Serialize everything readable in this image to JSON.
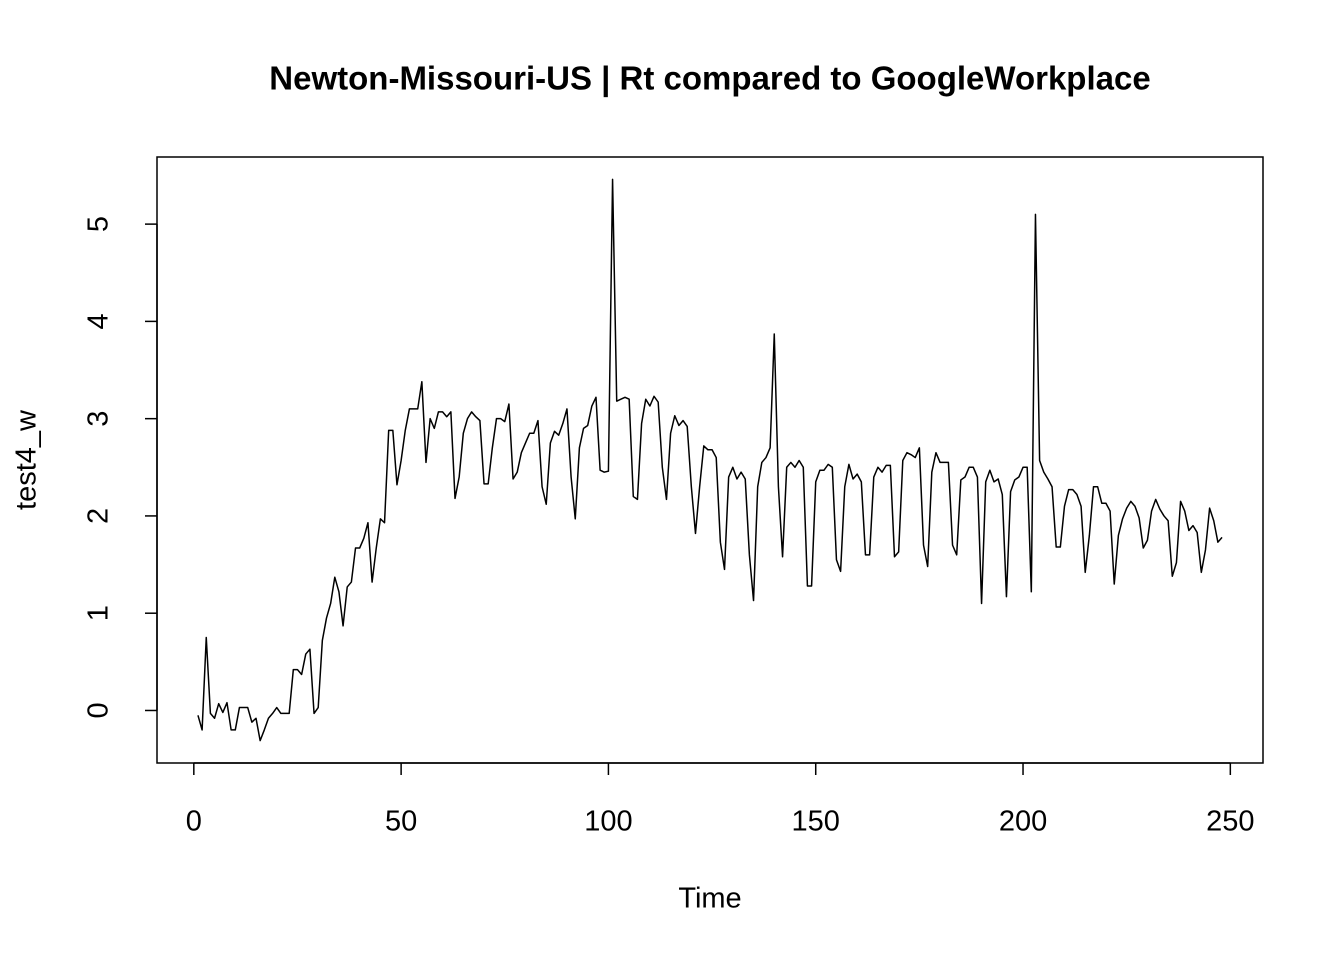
{
  "chart_data": {
    "type": "line",
    "title": "Newton-Missouri-US | Rt compared to GoogleWorkplace",
    "x_label": "Time",
    "y_label": "test4_w",
    "x": [
      1,
      2,
      3,
      4,
      5,
      6,
      7,
      8,
      9,
      10,
      11,
      12,
      13,
      14,
      15,
      16,
      17,
      18,
      19,
      20,
      21,
      22,
      23,
      24,
      25,
      26,
      27,
      28,
      29,
      30,
      31,
      32,
      33,
      34,
      35,
      36,
      37,
      38,
      39,
      40,
      41,
      42,
      43,
      44,
      45,
      46,
      47,
      48,
      49,
      50,
      51,
      52,
      53,
      54,
      55,
      56,
      57,
      58,
      59,
      60,
      61,
      62,
      63,
      64,
      65,
      66,
      67,
      68,
      69,
      70,
      71,
      72,
      73,
      74,
      75,
      76,
      77,
      78,
      79,
      80,
      81,
      82,
      83,
      84,
      85,
      86,
      87,
      88,
      89,
      90,
      91,
      92,
      93,
      94,
      95,
      96,
      97,
      98,
      99,
      100,
      101,
      102,
      103,
      104,
      105,
      106,
      107,
      108,
      109,
      110,
      111,
      112,
      113,
      114,
      115,
      116,
      117,
      118,
      119,
      120,
      121,
      122,
      123,
      124,
      125,
      126,
      127,
      128,
      129,
      130,
      131,
      132,
      133,
      134,
      135,
      136,
      137,
      138,
      139,
      140,
      141,
      142,
      143,
      144,
      145,
      146,
      147,
      148,
      149,
      150,
      151,
      152,
      153,
      154,
      155,
      156,
      157,
      158,
      159,
      160,
      161,
      162,
      163,
      164,
      165,
      166,
      167,
      168,
      169,
      170,
      171,
      172,
      173,
      174,
      175,
      176,
      177,
      178,
      179,
      180,
      181,
      182,
      183,
      184,
      185,
      186,
      187,
      188,
      189,
      190,
      191,
      192,
      193,
      194,
      195,
      196,
      197,
      198,
      199,
      200,
      201,
      202,
      203,
      204,
      205,
      206,
      207,
      208,
      209,
      210,
      211,
      212,
      213,
      214,
      215,
      216,
      217,
      218,
      219,
      220,
      221,
      222,
      223,
      224,
      225,
      226,
      227,
      228,
      229,
      230,
      231,
      232,
      233,
      234,
      235,
      236,
      237,
      238,
      239,
      240,
      241,
      242,
      243,
      244,
      245,
      246,
      247,
      248
    ],
    "series": [
      {
        "color": "#000000",
        "values": [
          -0.05,
          -0.2,
          0.75,
          -0.03,
          -0.08,
          0.07,
          -0.02,
          0.08,
          -0.2,
          -0.2,
          0.03,
          0.03,
          0.03,
          -0.12,
          -0.08,
          -0.31,
          -0.2,
          -0.08,
          -0.03,
          0.03,
          -0.03,
          -0.03,
          -0.03,
          0.42,
          0.42,
          0.37,
          0.58,
          0.63,
          -0.03,
          0.03,
          0.72,
          0.95,
          1.1,
          1.37,
          1.22,
          0.87,
          1.27,
          1.32,
          1.67,
          1.67,
          1.77,
          1.93,
          1.32,
          1.67,
          1.97,
          1.93,
          2.88,
          2.88,
          2.32,
          2.57,
          2.88,
          3.1,
          3.1,
          3.1,
          3.38,
          2.55,
          3.0,
          2.9,
          3.07,
          3.07,
          3.02,
          3.07,
          2.18,
          2.4,
          2.85,
          3.0,
          3.07,
          3.02,
          2.98,
          2.33,
          2.33,
          2.7,
          3.0,
          3.0,
          2.97,
          3.15,
          2.38,
          2.45,
          2.65,
          2.75,
          2.85,
          2.85,
          2.98,
          2.3,
          2.12,
          2.75,
          2.87,
          2.83,
          2.95,
          3.1,
          2.4,
          1.97,
          2.7,
          2.9,
          2.93,
          3.13,
          3.22,
          2.47,
          2.45,
          2.46,
          5.46,
          3.18,
          3.2,
          3.22,
          3.2,
          2.2,
          2.17,
          2.95,
          3.2,
          3.13,
          3.23,
          3.17,
          2.5,
          2.17,
          2.85,
          3.03,
          2.93,
          2.98,
          2.92,
          2.3,
          1.82,
          2.3,
          2.72,
          2.68,
          2.68,
          2.6,
          1.73,
          1.45,
          2.4,
          2.5,
          2.38,
          2.45,
          2.38,
          1.6,
          1.13,
          2.3,
          2.55,
          2.6,
          2.7,
          3.87,
          2.3,
          1.58,
          2.5,
          2.55,
          2.5,
          2.57,
          2.5,
          1.28,
          1.28,
          2.35,
          2.47,
          2.47,
          2.53,
          2.5,
          1.55,
          1.43,
          2.3,
          2.53,
          2.38,
          2.43,
          2.35,
          1.6,
          1.6,
          2.4,
          2.5,
          2.45,
          2.52,
          2.52,
          1.58,
          1.63,
          2.57,
          2.65,
          2.63,
          2.6,
          2.7,
          1.7,
          1.48,
          2.45,
          2.65,
          2.55,
          2.55,
          2.55,
          1.7,
          1.6,
          2.37,
          2.4,
          2.5,
          2.5,
          2.4,
          1.1,
          2.35,
          2.47,
          2.35,
          2.38,
          2.22,
          1.17,
          2.25,
          2.37,
          2.4,
          2.5,
          2.5,
          1.22,
          5.1,
          2.57,
          2.45,
          2.38,
          2.3,
          1.68,
          1.68,
          2.1,
          2.27,
          2.27,
          2.22,
          2.1,
          1.42,
          1.8,
          2.3,
          2.3,
          2.13,
          2.13,
          2.05,
          1.3,
          1.8,
          1.97,
          2.08,
          2.15,
          2.1,
          1.98,
          1.67,
          1.75,
          2.05,
          2.17,
          2.07,
          2.0,
          1.95,
          1.38,
          1.52,
          2.15,
          2.05,
          1.85,
          1.9,
          1.83,
          1.42,
          1.65,
          2.08,
          1.95,
          1.73,
          1.78
        ]
      }
    ],
    "xlim": [
      -8.88,
      257.88
    ],
    "xticks": [
      0,
      50,
      100,
      150,
      200,
      250
    ],
    "ylim": [
      -0.54,
      5.69
    ],
    "yticks": [
      0,
      1,
      2,
      3,
      4,
      5
    ]
  }
}
